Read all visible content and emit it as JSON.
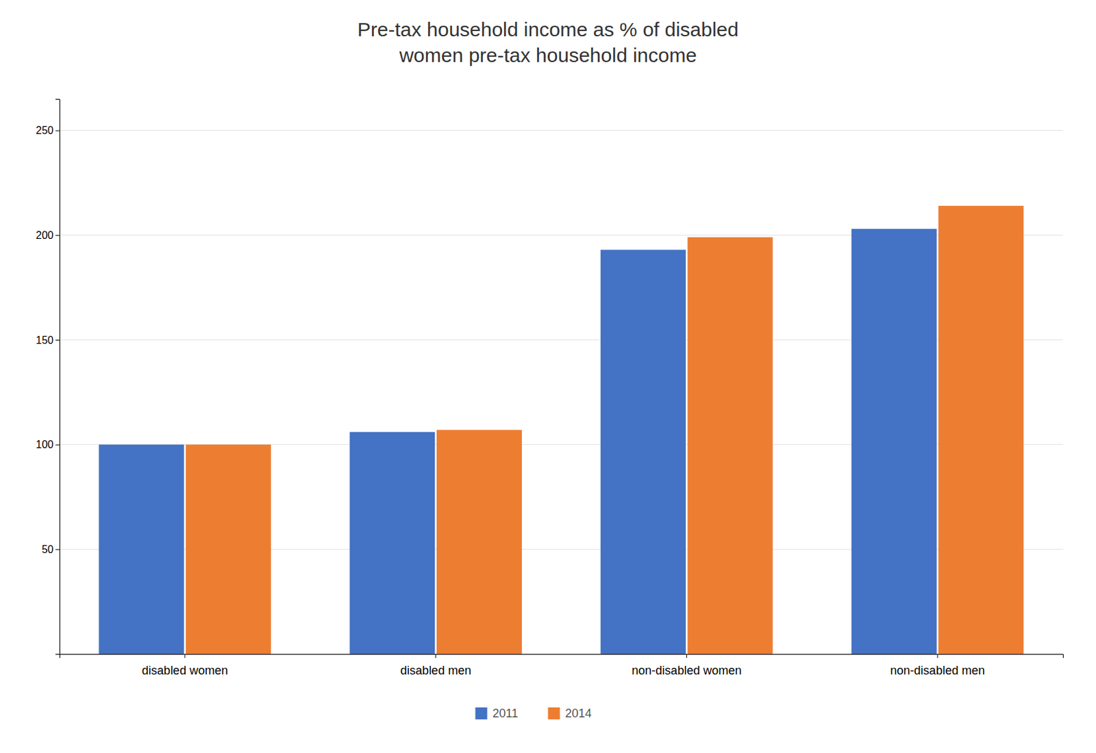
{
  "chart_data": {
    "type": "bar",
    "title": "Pre-tax household income as % of disabled\nwomen pre-tax household income",
    "categories": [
      "disabled women",
      "disabled men",
      "non-disabled women",
      "non-disabled men"
    ],
    "series": [
      {
        "name": "2011",
        "color": "#4472C4",
        "values": [
          100,
          106,
          193,
          203
        ]
      },
      {
        "name": "2014",
        "color": "#ED7D31",
        "values": [
          100,
          107,
          199,
          214
        ]
      }
    ],
    "ylim": [
      0,
      265
    ],
    "yticks": [
      50,
      100,
      150,
      200,
      250
    ],
    "grid": true,
    "legend": "bottom"
  }
}
